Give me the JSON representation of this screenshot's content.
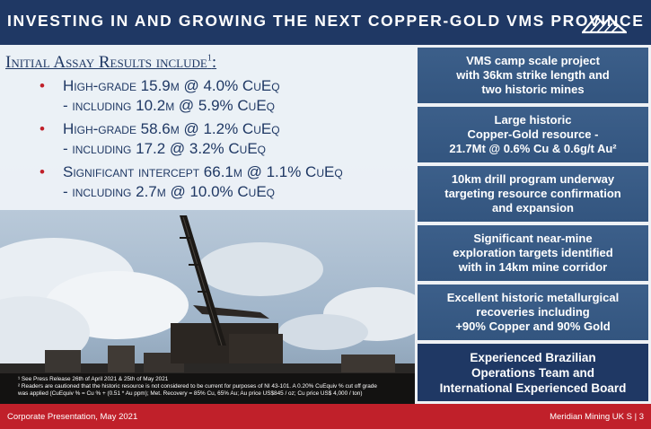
{
  "header": {
    "title": "INVESTING IN AND GROWING THE NEXT COPPER-GOLD VMS PROVINCE",
    "logo_icon": "mountain-logo-icon"
  },
  "assay": {
    "heading": "Initial Assay Results include",
    "heading_sup": "1",
    "heading_suffix": ":",
    "results": [
      {
        "line1": "High-grade 15.9m @ 4.0% CuEq",
        "line2": "- including 10.2m @ 5.9% CuEq"
      },
      {
        "line1": "High-grade 58.6m @ 1.2% CuEq",
        "line2": "- including 17.2 @ 3.2% CuEq"
      },
      {
        "line1": "Significant intercept 66.1m @ 1.1% CuEq",
        "line2": "- including 2.7m @ 10.0% CuEq"
      }
    ],
    "bullet": "•"
  },
  "footnotes": [
    "¹ See Press Release 26th of April 2021 & 25th of May 2021",
    "² Readers are cautioned that the historic resource is not considered to be current for purposes of NI 43-101. A 0.20% CuEquiv % cut off grade",
    "   was  applied (CuEquiv % = Cu % + (0.51 * Au ppm); Met. Recovery = 85% Cu, 65% Au; Au price US$845 / oz; Cu price US$ 4,000 / ton)"
  ],
  "highlights": [
    "VMS camp scale project\nwith 36km strike length and\ntwo historic mines",
    "Large historic\nCopper-Gold resource -\n21.7Mt @ 0.6% Cu & 0.6g/t Au²",
    "10km drill program underway\ntargeting resource confirmation\nand expansion",
    "Significant near-mine\nexploration targets identified\nwith in 14km mine corridor",
    "Excellent historic metallurgical\nrecoveries including\n+90% Copper and 90% Gold",
    "Experienced Brazilian\nOperations Team and\nInternational Experienced Board"
  ],
  "footer": {
    "left": "Corporate Presentation, May 2021",
    "right": "Meridian Mining UK S | 3"
  },
  "colors": {
    "navy": "#1f3864",
    "box_blue": "#3c5f8a",
    "accent_red": "#c0202a"
  }
}
